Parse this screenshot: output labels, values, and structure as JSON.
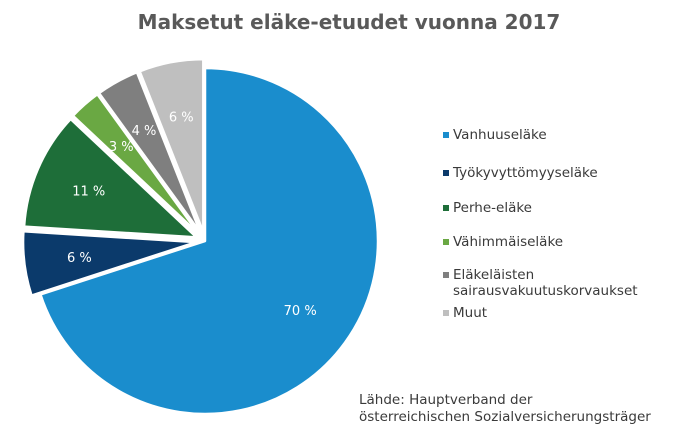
{
  "chart_data": {
    "type": "pie",
    "title": "Maksetut eläke-etuudet vuonna 2017",
    "start_angle_deg": 0,
    "direction": "clockwise",
    "slices": [
      {
        "name": "Vanhuuseläke",
        "value": 70,
        "label": "70 %",
        "color": "#1a8dcd",
        "exploded": false
      },
      {
        "name": "Työkyvyttömyyseläke",
        "value": 6,
        "label": "6 %",
        "color": "#0b3a6b",
        "exploded": true
      },
      {
        "name": "Perhe-eläke",
        "value": 11,
        "label": "11 %",
        "color": "#1e6e39",
        "exploded": true
      },
      {
        "name": "Vähimmäiseläke",
        "value": 3,
        "label": "3 %",
        "color": "#6aa843",
        "exploded": true
      },
      {
        "name": "Eläkeläisten\nsairausvakuutuskorvaukset",
        "value": 4,
        "label": "4 %",
        "color": "#7f7f7f",
        "exploded": true
      },
      {
        "name": "Muut",
        "value": 6,
        "label": "6 %",
        "color": "#bfbfbf",
        "exploded": true
      }
    ],
    "legend_position": "right",
    "source": "Lähde: Hauptverband der\nösterreichischen Sozialversicherungsträger"
  }
}
